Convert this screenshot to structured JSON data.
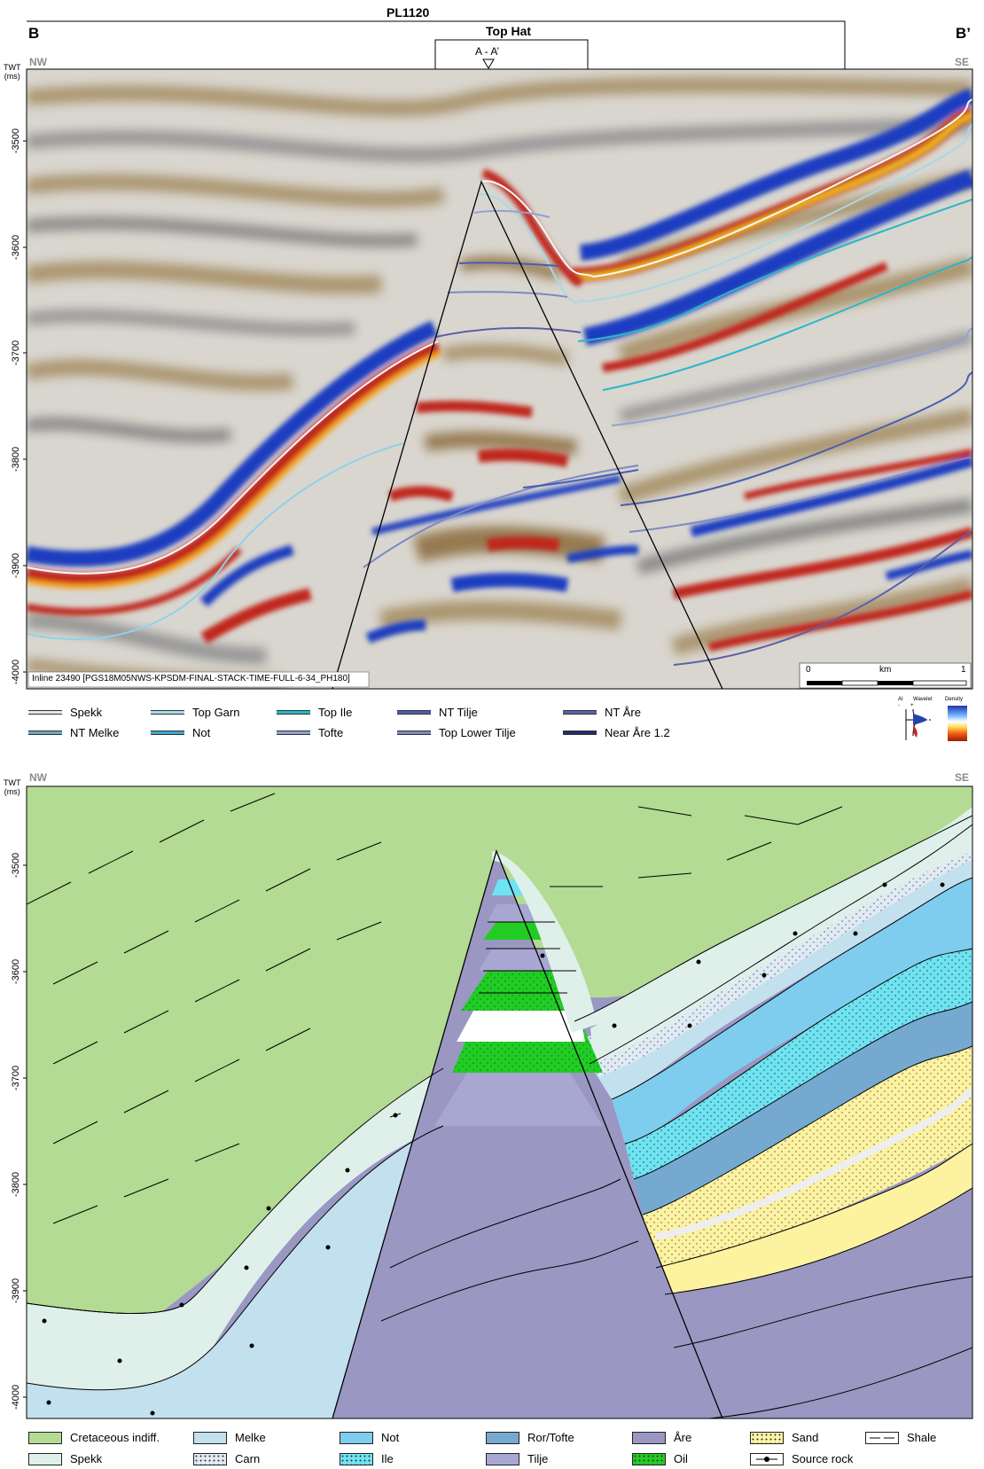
{
  "header": {
    "licence": "PL1120",
    "prospect": "Top Hat",
    "line_marker": "A - A’",
    "left_corner": "B",
    "right_corner": "B’"
  },
  "panels": {
    "top": {
      "orient_left": "NW",
      "orient_right": "SE",
      "y_unit_line1": "TWT",
      "y_unit_line2": "(ms)",
      "y_ticks": [
        "-3500",
        "-3600",
        "-3700",
        "-3800",
        "-3900",
        "-4000"
      ],
      "inline_caption": "Inline 23490 [PGS18M05NWS-KPSDM-FINAL-STACK-TIME-FULL-6-34_PH180]",
      "scale": {
        "start": "0",
        "unit": "km",
        "end": "1"
      },
      "wavelet_labels": {
        "ai": "AI",
        "minus": "-",
        "plus": "+",
        "wavelet": "Wavelet",
        "density": "Density"
      }
    },
    "bottom": {
      "orient_left": "NW",
      "orient_right": "SE",
      "y_unit_line1": "TWT",
      "y_unit_line2": "(ms)",
      "y_ticks": [
        "-3500",
        "-3600",
        "-3700",
        "-3800",
        "-3900",
        "-4000"
      ]
    }
  },
  "horizon_legend": [
    {
      "label": "Spekk",
      "color": "#dfe8ee"
    },
    {
      "label": "NT Melke",
      "color": "#6fa6c6"
    },
    {
      "label": "Top Garn",
      "color": "#a5dde8"
    },
    {
      "label": "Not",
      "color": "#3aa7d0"
    },
    {
      "label": "Top Ile",
      "color": "#27b7c9"
    },
    {
      "label": "Tofte",
      "color": "#8fa2d6"
    },
    {
      "label": "NT Tilje",
      "color": "#4a5db0"
    },
    {
      "label": "Top Lower Tilje",
      "color": "#7d89c2"
    },
    {
      "label": "NT Åre",
      "color": "#5c5fa8"
    },
    {
      "label": "Near Åre 1.2",
      "color": "#232a6b"
    }
  ],
  "facies_legend": [
    {
      "label": "Cretaceous indiff.",
      "color": "#b3db93"
    },
    {
      "label": "Spekk",
      "color": "#dff0ea"
    },
    {
      "label": "Melke",
      "color": "#c3e0ee"
    },
    {
      "label": "Carn",
      "color": "#dfeaf5"
    },
    {
      "label": "Not",
      "color": "#7fcdee"
    },
    {
      "label": "Ile",
      "color": "#6ee3f2"
    },
    {
      "label": "Ror/Tofte",
      "color": "#76a9cf"
    },
    {
      "label": "Tilje",
      "color": "#a8a7d2"
    },
    {
      "label": "Åre",
      "color": "#9a97c3"
    },
    {
      "label": "Oil",
      "color": "#22cc22"
    },
    {
      "label": "Sand",
      "color": "#fcf2a0"
    },
    {
      "label": "Source rock",
      "color": "#ffffff"
    },
    {
      "label": "Shale",
      "color": "#ffffff"
    }
  ]
}
